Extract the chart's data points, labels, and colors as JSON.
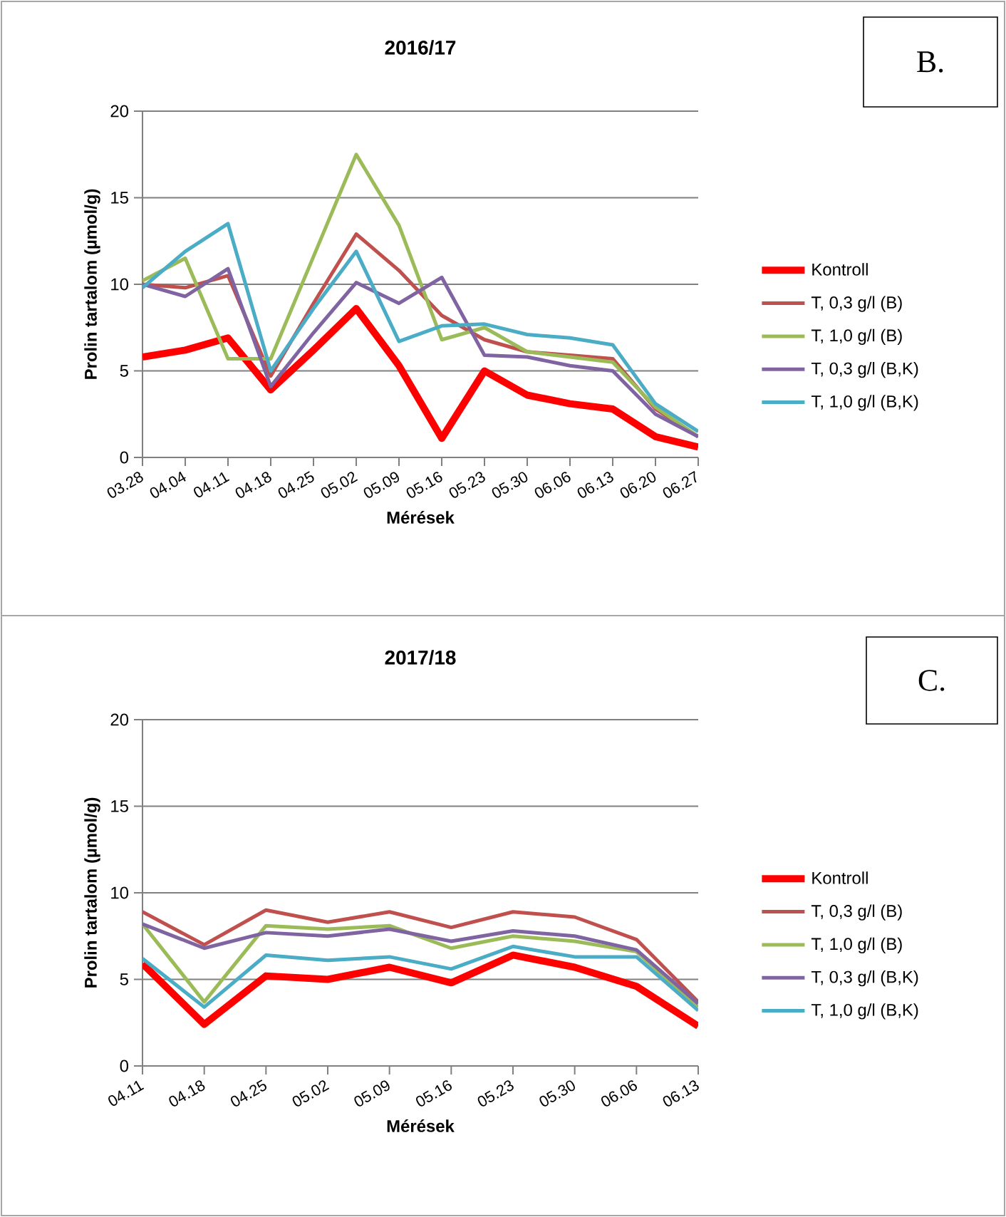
{
  "chart_data": [
    {
      "type": "line",
      "title": "2016/17",
      "xlabel": "Mérések",
      "ylabel": "Prolin tartalom (µmol/g)",
      "annotations": [
        "B."
      ],
      "categories": [
        "03.28",
        "04.04",
        "04.11",
        "04.18",
        "04.25",
        "05.02",
        "05.09",
        "05.16",
        "05.23",
        "05.30",
        "06.06",
        "06.13",
        "06.20",
        "06.27"
      ],
      "ylim": [
        0,
        20
      ],
      "yticks": [
        0,
        5,
        10,
        15,
        20
      ],
      "grid": "y",
      "legend": "right",
      "series": [
        {
          "name": "Kontroll",
          "color": "#ff0000",
          "values": [
            5.8,
            6.2,
            6.9,
            3.9,
            6.2,
            8.6,
            5.3,
            1.1,
            5.0,
            3.6,
            3.1,
            2.8,
            1.2,
            0.6
          ]
        },
        {
          "name": "T, 0,3 g/l (B)",
          "color": "#c0504d",
          "values": [
            10.0,
            9.8,
            10.5,
            4.7,
            8.9,
            12.9,
            10.8,
            8.2,
            6.8,
            6.1,
            5.9,
            5.7,
            2.8,
            1.2
          ]
        },
        {
          "name": "T, 1,0 g/l (B)",
          "color": "#9bbb59",
          "values": [
            10.2,
            11.5,
            5.7,
            5.7,
            11.6,
            17.5,
            13.4,
            6.8,
            7.5,
            6.1,
            5.8,
            5.5,
            2.9,
            1.2
          ]
        },
        {
          "name": "T, 0,3 g/l (B,K)",
          "color": "#8064a2",
          "values": [
            10.0,
            9.3,
            10.9,
            4.1,
            7.2,
            10.1,
            8.9,
            10.4,
            5.9,
            5.8,
            5.3,
            5.0,
            2.5,
            1.2
          ]
        },
        {
          "name": "T, 1,0 g/l (B,K)",
          "color": "#4bacc6",
          "values": [
            9.8,
            11.9,
            13.5,
            5.0,
            8.6,
            11.9,
            6.7,
            7.6,
            7.7,
            7.1,
            6.9,
            6.5,
            3.1,
            1.5
          ]
        }
      ]
    },
    {
      "type": "line",
      "title": "2017/18",
      "xlabel": "Mérések",
      "ylabel": "Prolin tartalom (µmol/g)",
      "annotations": [
        "C."
      ],
      "categories": [
        "04.11",
        "04.18",
        "04.25",
        "05.02",
        "05.09",
        "05.16",
        "05.23",
        "05.30",
        "06.06",
        "06.13"
      ],
      "ylim": [
        0,
        20
      ],
      "yticks": [
        0,
        5,
        10,
        15,
        20
      ],
      "grid": "y",
      "legend": "right",
      "series": [
        {
          "name": "Kontroll",
          "color": "#ff0000",
          "values": [
            5.9,
            2.4,
            5.2,
            5.0,
            5.7,
            4.8,
            6.4,
            5.7,
            4.6,
            2.3
          ]
        },
        {
          "name": "T, 0,3 g/l (B)",
          "color": "#c0504d",
          "values": [
            8.9,
            7.0,
            9.0,
            8.3,
            8.9,
            8.0,
            8.9,
            8.6,
            7.3,
            3.7
          ]
        },
        {
          "name": "T, 1,0 g/l (B)",
          "color": "#9bbb59",
          "values": [
            8.2,
            3.7,
            8.1,
            7.9,
            8.1,
            6.8,
            7.5,
            7.2,
            6.6,
            3.4
          ]
        },
        {
          "name": "T, 0,3 g/l (B,K)",
          "color": "#8064a2",
          "values": [
            8.2,
            6.8,
            7.7,
            7.5,
            7.9,
            7.2,
            7.8,
            7.5,
            6.7,
            3.6
          ]
        },
        {
          "name": "T, 1,0 g/l (B,K)",
          "color": "#4bacc6",
          "values": [
            6.2,
            3.4,
            6.4,
            6.1,
            6.3,
            5.6,
            6.9,
            6.3,
            6.3,
            3.2
          ]
        }
      ]
    }
  ]
}
